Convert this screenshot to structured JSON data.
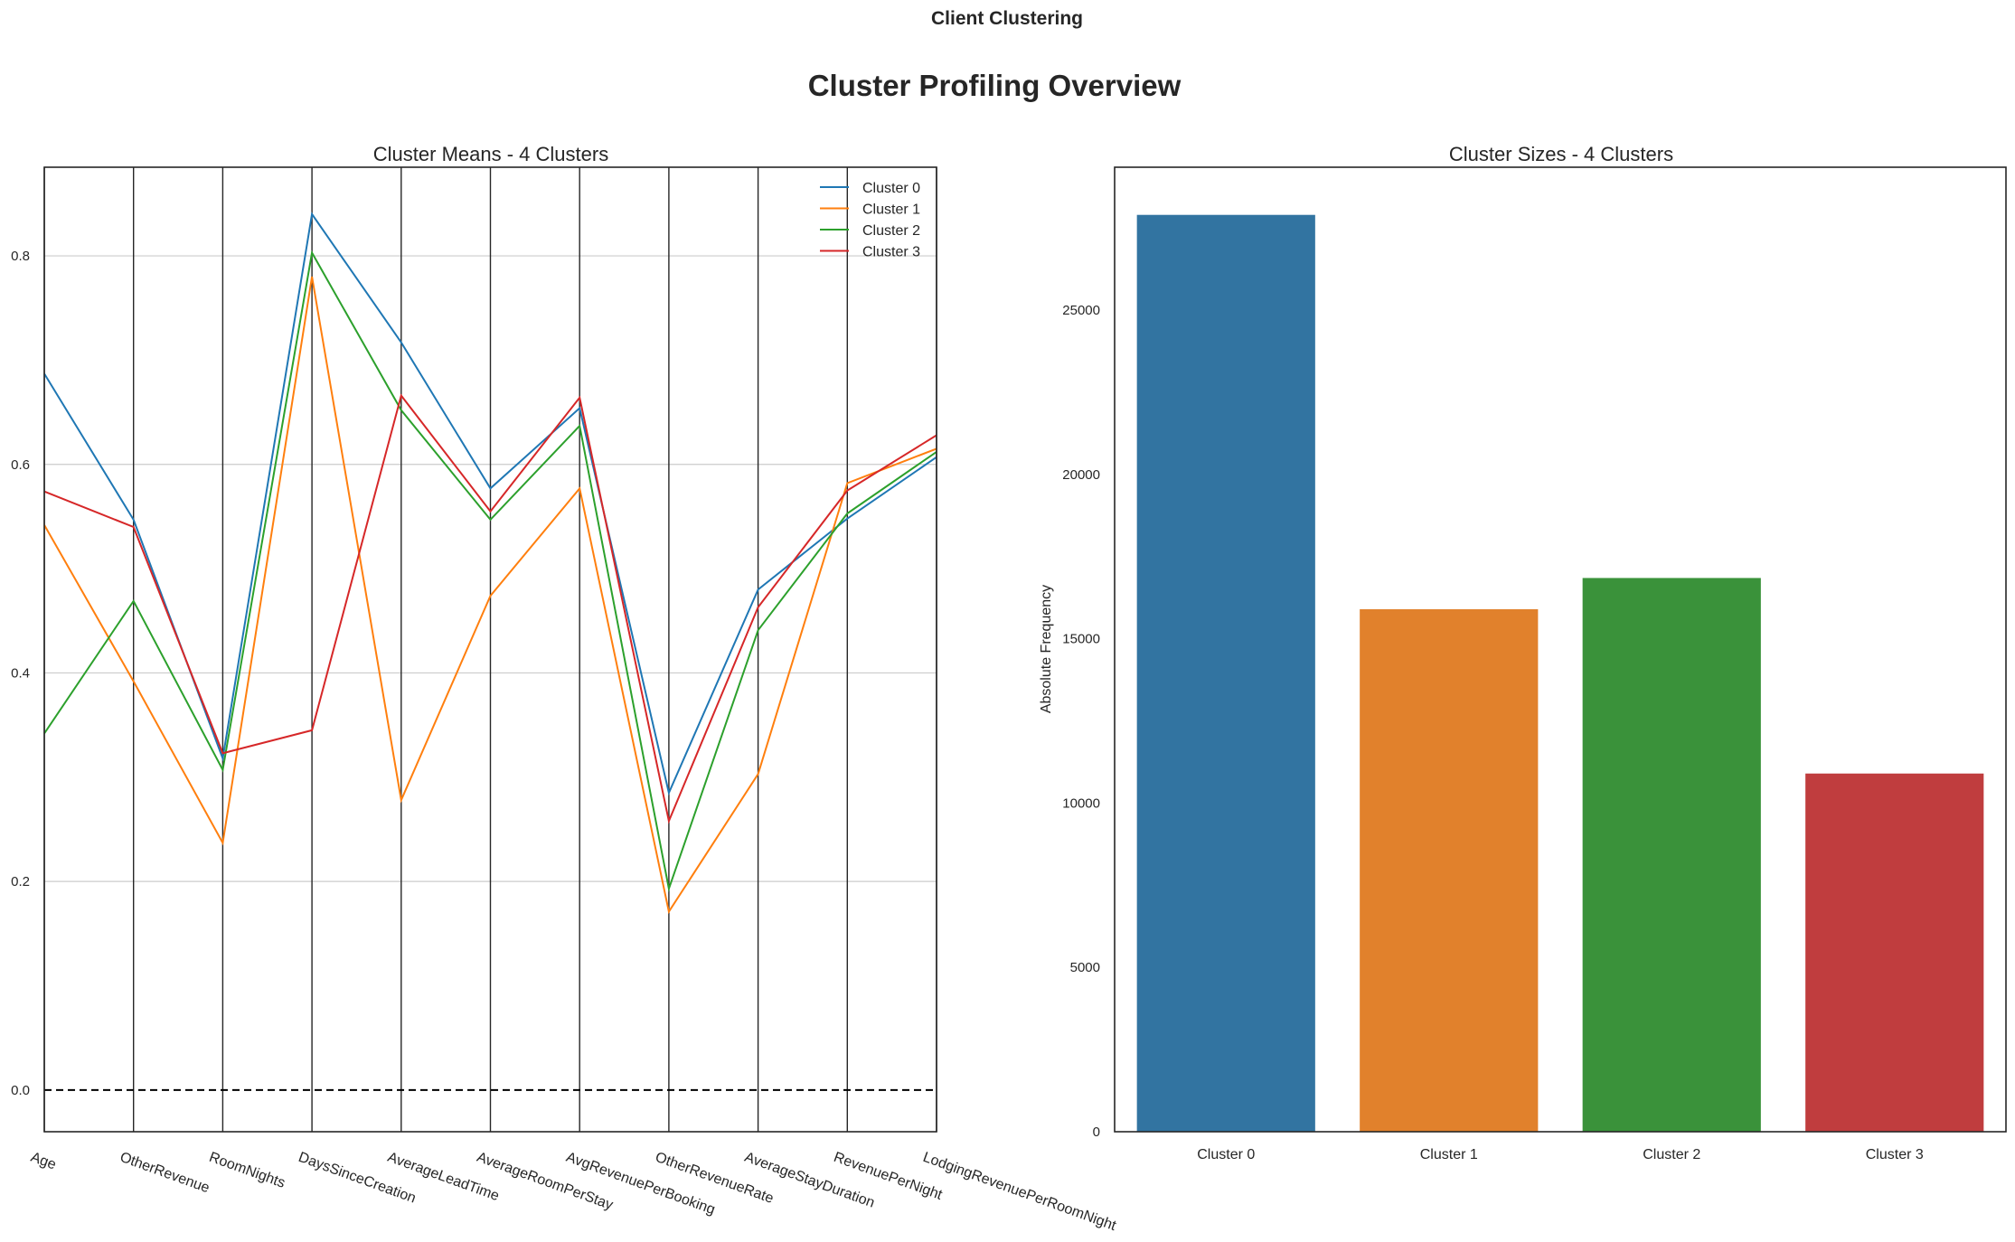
{
  "figure": {
    "suptitle": "Client Clustering",
    "title": "Cluster Profiling Overview"
  },
  "chart_data": [
    {
      "type": "line",
      "subtype": "parallel_coordinates",
      "title": "Cluster Means - 4 Clusters",
      "categories": [
        "Age",
        "OtherRevenue",
        "RoomNights",
        "DaysSinceCreation",
        "AverageLeadTime",
        "AverageRoomPerStay",
        "AvgRevenuePerBooking",
        "OtherRevenueRate",
        "AverageStayDuration",
        "RevenuePerNight",
        "LodgingRevenuePerRoomNight"
      ],
      "ylim": [
        -0.04,
        0.885
      ],
      "yticks": [
        "0.0",
        "0.2",
        "0.4",
        "0.6",
        "0.8"
      ],
      "ytick_values": [
        0.0,
        0.2,
        0.4,
        0.6,
        0.8
      ],
      "reference_line": 0.0,
      "grid": "horizontal",
      "legend_position": "upper right",
      "series": [
        {
          "name": "Cluster 0",
          "color": "#1f77b4",
          "values": [
            0.687,
            0.547,
            0.318,
            0.84,
            0.717,
            0.577,
            0.654,
            0.285,
            0.48,
            0.548,
            0.607
          ]
        },
        {
          "name": "Cluster 1",
          "color": "#ff7f0e",
          "values": [
            0.542,
            0.392,
            0.237,
            0.78,
            0.278,
            0.474,
            0.577,
            0.171,
            0.303,
            0.582,
            0.615
          ]
        },
        {
          "name": "Cluster 2",
          "color": "#2ca02c",
          "values": [
            0.342,
            0.469,
            0.307,
            0.803,
            0.652,
            0.547,
            0.637,
            0.193,
            0.441,
            0.553,
            0.612
          ]
        },
        {
          "name": "Cluster 3",
          "color": "#d62728",
          "values": [
            0.574,
            0.54,
            0.323,
            0.345,
            0.666,
            0.555,
            0.664,
            0.258,
            0.463,
            0.575,
            0.628
          ]
        }
      ]
    },
    {
      "type": "bar",
      "title": "Cluster Sizes - 4 Clusters",
      "categories": [
        "Cluster 0",
        "Cluster 1",
        "Cluster 2",
        "Cluster 3"
      ],
      "values": [
        27900,
        15900,
        16850,
        10900
      ],
      "colors": [
        "#3274a1",
        "#e1812c",
        "#3a923a",
        "#c03d3e"
      ],
      "xlabel": "",
      "ylabel": "Absolute Frequency",
      "ylim": [
        0,
        29350
      ],
      "yticks": [
        "0",
        "5000",
        "10000",
        "15000",
        "20000",
        "25000"
      ],
      "ytick_values": [
        0,
        5000,
        10000,
        15000,
        20000,
        25000
      ]
    }
  ]
}
